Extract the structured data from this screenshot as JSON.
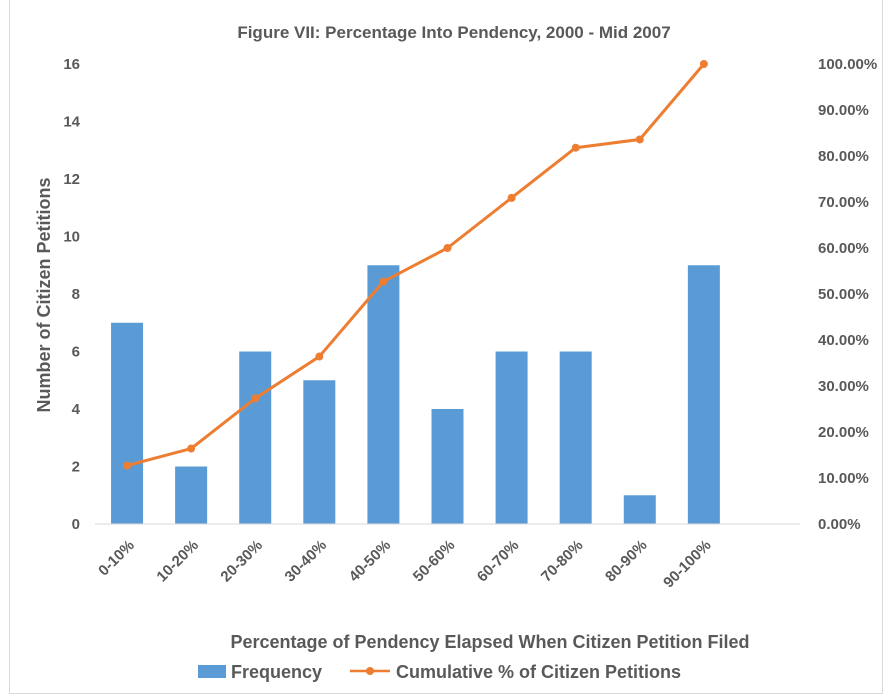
{
  "chart_data": {
    "type": "bar+line",
    "title": "Figure VII: Percentage Into Pendency, 2000 - Mid 2007",
    "xlabel": "Percentage of Pendency Elapsed When Citizen Petition Filed",
    "ylabel": "Number of Citizen Petitions",
    "y2label": "",
    "categories": [
      "0-10%",
      "10-20%",
      "20-30%",
      "30-40%",
      "40-50%",
      "50-60%",
      "60-70%",
      "70-80%",
      "80-90%",
      "90-100%"
    ],
    "ylim": [
      0,
      16
    ],
    "yticks": [
      "0",
      "2",
      "4",
      "6",
      "8",
      "10",
      "12",
      "14",
      "16"
    ],
    "y2lim": [
      0,
      100
    ],
    "y2ticks": [
      "0.00%",
      "10.00%",
      "20.00%",
      "30.00%",
      "40.00%",
      "50.00%",
      "60.00%",
      "70.00%",
      "80.00%",
      "90.00%",
      "100.00%"
    ],
    "series": [
      {
        "name": "Frequency",
        "type": "bar",
        "axis": "left",
        "color": "#5b9bd5",
        "values": [
          7,
          2,
          6,
          5,
          9,
          4,
          6,
          6,
          1,
          9
        ]
      },
      {
        "name": "Cumulative % of Citizen Petitions",
        "type": "line",
        "axis": "right",
        "color": "#ed7d31",
        "values": [
          12.7,
          16.4,
          27.3,
          36.4,
          52.7,
          60.0,
          70.9,
          81.8,
          83.6,
          100.0
        ]
      }
    ],
    "grid": false,
    "legend": "bottom"
  }
}
